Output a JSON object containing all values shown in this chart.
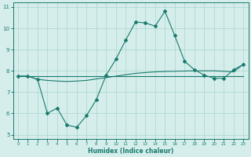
{
  "x": [
    0,
    1,
    2,
    3,
    4,
    5,
    6,
    7,
    8,
    9,
    10,
    11,
    12,
    13,
    14,
    15,
    16,
    17,
    18,
    19,
    20,
    21,
    22,
    23
  ],
  "line1": [
    7.75,
    7.75,
    7.75,
    7.75,
    7.75,
    7.75,
    7.75,
    7.75,
    7.75,
    7.75,
    7.75,
    7.75,
    7.75,
    7.75,
    7.75,
    7.75,
    7.75,
    7.75,
    7.75,
    7.75,
    7.75,
    7.75,
    7.75,
    7.75
  ],
  "line2": [
    7.75,
    7.75,
    7.6,
    7.55,
    7.52,
    7.5,
    7.52,
    7.55,
    7.62,
    7.68,
    7.75,
    7.82,
    7.88,
    7.92,
    7.95,
    7.97,
    7.98,
    7.99,
    8.0,
    8.0,
    8.0,
    7.98,
    7.95,
    8.3
  ],
  "line3": [
    7.75,
    7.75,
    7.6,
    6.0,
    6.25,
    5.45,
    5.35,
    5.9,
    6.65,
    7.8,
    8.55,
    9.45,
    10.3,
    10.25,
    10.1,
    10.8,
    9.65,
    8.45,
    8.05,
    7.8,
    7.65,
    7.65,
    8.05,
    8.3
  ],
  "line_color": "#1a7a6e",
  "bg_color": "#d5eeeb",
  "grid_color": "#b0d8d3",
  "xlabel": "Humidex (Indice chaleur)",
  "ylim": [
    4.8,
    11.2
  ],
  "xlim": [
    -0.5,
    23.5
  ],
  "yticks": [
    5,
    6,
    7,
    8,
    9,
    10,
    11
  ],
  "xticks": [
    0,
    1,
    2,
    3,
    4,
    5,
    6,
    7,
    8,
    9,
    10,
    11,
    12,
    13,
    14,
    15,
    16,
    17,
    18,
    19,
    20,
    21,
    22,
    23
  ]
}
